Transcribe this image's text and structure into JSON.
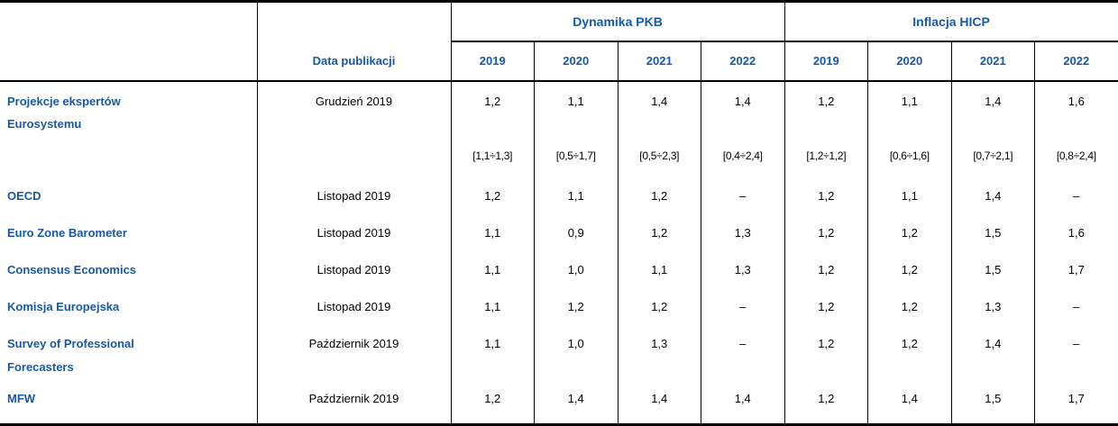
{
  "colors": {
    "accent_blue": "#1659A8",
    "border_black": "#000000",
    "background": "#FFFFFF"
  },
  "chart_data": {
    "type": "table",
    "group_headers": [
      "Dynamika PKB",
      "Inflacja HICP"
    ],
    "date_column_header": "Data publikacji",
    "year_columns": [
      "2019",
      "2020",
      "2021",
      "2022",
      "2019",
      "2020",
      "2021",
      "2022"
    ],
    "rows": [
      {
        "label": "Projekcje ekspertów\nEurosystemu",
        "date": "Grudzień 2019",
        "values": [
          "1,2",
          "1,1",
          "1,4",
          "1,4",
          "1,2",
          "1,1",
          "1,4",
          "1,6"
        ]
      },
      {
        "label": "",
        "date": "",
        "values": [
          "[1,1÷1,3]",
          "[0,5÷1,7]",
          "[0,5÷2,3]",
          "[0,4÷2,4]",
          "[1,2÷1,2]",
          "[0,6÷1,6]",
          "[0,7÷2,1]",
          "[0,8÷2,4]"
        ]
      },
      {
        "label": "OECD",
        "date": "Listopad 2019",
        "values": [
          "1,2",
          "1,1",
          "1,2",
          "–",
          "1,2",
          "1,1",
          "1,4",
          "–"
        ]
      },
      {
        "label": "Euro Zone Barometer",
        "date": "Listopad 2019",
        "values": [
          "1,1",
          "0,9",
          "1,2",
          "1,3",
          "1,2",
          "1,2",
          "1,5",
          "1,6"
        ]
      },
      {
        "label": "Consensus Economics",
        "date": "Listopad 2019",
        "values": [
          "1,1",
          "1,0",
          "1,1",
          "1,3",
          "1,2",
          "1,2",
          "1,5",
          "1,7"
        ]
      },
      {
        "label": "Komisja Europejska",
        "date": "Listopad 2019",
        "values": [
          "1,1",
          "1,2",
          "1,2",
          "–",
          "1,2",
          "1,2",
          "1,3",
          "–"
        ]
      },
      {
        "label": "Survey of Professional\nForecasters",
        "date": "Październik 2019",
        "values": [
          "1,1",
          "1,0",
          "1,3",
          "–",
          "1,2",
          "1,2",
          "1,4",
          "–"
        ]
      },
      {
        "label": "MFW",
        "date": "Październik 2019",
        "values": [
          "1,2",
          "1,4",
          "1,4",
          "1,4",
          "1,2",
          "1,4",
          "1,5",
          "1,7"
        ]
      }
    ]
  }
}
